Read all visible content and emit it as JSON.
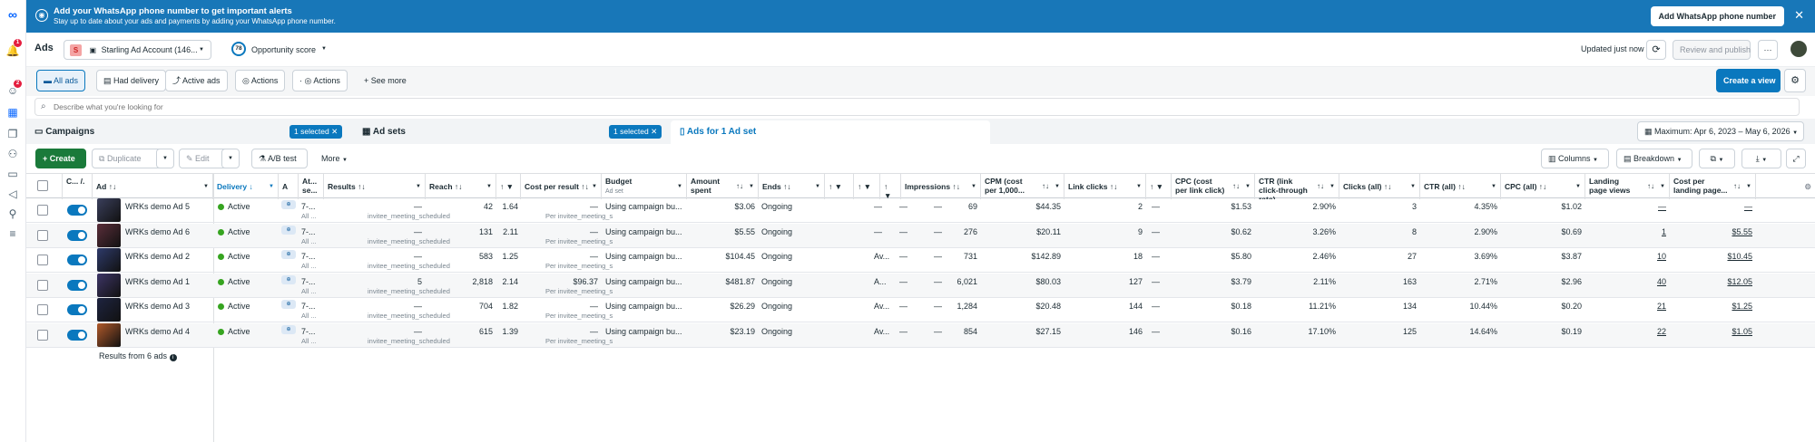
{
  "notifications_badge": "1",
  "messages_badge": "2",
  "banner": {
    "title": "Add your WhatsApp phone number to get important alerts",
    "subtitle": "Stay up to date about your ads and payments by adding your WhatsApp phone number.",
    "button": "Add WhatsApp phone number"
  },
  "topbar": {
    "title": "Ads",
    "account_initial": "S",
    "account_name": "Starling Ad Account (146...",
    "score": "78",
    "score_label": "Opportunity score",
    "updated": "Updated just now",
    "review": "Review and publish",
    "more": "···"
  },
  "views": {
    "items": [
      "All ads",
      "Had delivery",
      "Active ads",
      "Actions",
      "Actions"
    ],
    "see_more": "See more",
    "create_view": "Create a view"
  },
  "search": {
    "placeholder": "Describe what you're looking for"
  },
  "panels": {
    "campaigns": "Campaigns",
    "campaigns_selected": "1 selected",
    "adsets": "Ad sets",
    "adsets_selected": "1 selected",
    "ads": "Ads for 1 Ad set",
    "date_range": "Maximum: Apr 6, 2023 – May 6, 2026"
  },
  "actions": {
    "create": "Create",
    "duplicate": "Duplicate",
    "edit": "Edit",
    "abtest": "A/B test",
    "more": "More",
    "columns": "Columns",
    "breakdown": "Breakdown"
  },
  "columns": {
    "onoff": "C... /.",
    "ad": "Ad",
    "delivery": "Delivery",
    "a": "A",
    "attribution": "At... se...",
    "results": "Results",
    "reach": "Reach",
    "frequency": "",
    "cost_per_result": "Cost per result",
    "budget": "Budget",
    "budget_sub": "Ad set",
    "amount_spent": "Amount spent",
    "ends": "Ends",
    "impressions": "Impressions",
    "cpm": "CPM (cost per 1,000...",
    "link_clicks": "Link clicks",
    "cpc": "CPC (cost per link click)",
    "ctr_link": "CTR (link click-through rate)",
    "clicks_all": "Clicks (all)",
    "ctr_all": "CTR (all)",
    "cpc_all": "CPC (all)",
    "lpv": "Landing page views",
    "cost_lpv": "Cost per landing page..."
  },
  "rows": [
    {
      "name": "WRKs demo Ad 5",
      "delivery": "Active",
      "attr": "7-...",
      "attr_sub": "All ...",
      "results": "—",
      "results_sub": "invitee_meeting_scheduled",
      "reach": "42",
      "freq": "1.64",
      "cpr": "—",
      "cpr_sub": "Per invitee_meeting_sc...",
      "budget": "Using campaign bu...",
      "spent": "$3.06",
      "ends": "Ongoing",
      "e1": "—",
      "e2": "—",
      "e3": "—",
      "impr": "69",
      "cpm": "$44.35",
      "clicks": "2",
      "lc2": "—",
      "cpc": "$1.53",
      "ctrl": "2.90%",
      "call": "3",
      "ctra": "4.35%",
      "cpca": "$1.02",
      "lpv": "—",
      "clpv": "—",
      "thumb": "#3a3f5c"
    },
    {
      "name": "WRKs demo Ad 6",
      "delivery": "Active",
      "attr": "7-...",
      "attr_sub": "All ...",
      "results": "—",
      "results_sub": "invitee_meeting_scheduled",
      "reach": "131",
      "freq": "2.11",
      "cpr": "—",
      "cpr_sub": "Per invitee_meeting_sc...",
      "budget": "Using campaign bu...",
      "spent": "$5.55",
      "ends": "Ongoing",
      "e1": "—",
      "e2": "—",
      "e3": "—",
      "impr": "276",
      "cpm": "$20.11",
      "clicks": "9",
      "lc2": "—",
      "cpc": "$0.62",
      "ctrl": "3.26%",
      "call": "8",
      "ctra": "2.90%",
      "cpca": "$0.69",
      "lpv": "1",
      "clpv": "$5.55",
      "thumb": "#5a2e3a"
    },
    {
      "name": "WRKs demo Ad 2",
      "delivery": "Active",
      "attr": "7-...",
      "attr_sub": "All ...",
      "results": "—",
      "results_sub": "invitee_meeting_scheduled",
      "reach": "583",
      "freq": "1.25",
      "cpr": "—",
      "cpr_sub": "Per invitee_meeting_sc...",
      "budget": "Using campaign bu...",
      "spent": "$104.45",
      "ends": "Ongoing",
      "e1": "Av...",
      "e2": "—",
      "e3": "—",
      "impr": "731",
      "cpm": "$142.89",
      "clicks": "18",
      "lc2": "—",
      "cpc": "$5.80",
      "ctrl": "2.46%",
      "call": "27",
      "ctra": "3.69%",
      "cpca": "$3.87",
      "lpv": "10",
      "clpv": "$10.45",
      "thumb": "#2e3a6a"
    },
    {
      "name": "WRKs demo Ad 1",
      "delivery": "Active",
      "attr": "7-...",
      "attr_sub": "All ...",
      "results": "5",
      "results_sub": "invitee_meeting_scheduled",
      "reach": "2,818",
      "freq": "2.14",
      "cpr": "$96.37",
      "cpr_sub": "Per invitee_meeting_sc...",
      "budget": "Using campaign bu...",
      "spent": "$481.87",
      "ends": "Ongoing",
      "e1": "A...",
      "e2": "—",
      "e3": "—",
      "impr": "6,021",
      "cpm": "$80.03",
      "clicks": "127",
      "lc2": "—",
      "cpc": "$3.79",
      "ctrl": "2.11%",
      "call": "163",
      "ctra": "2.71%",
      "cpca": "$2.96",
      "lpv": "40",
      "clpv": "$12.05",
      "thumb": "#3d3566"
    },
    {
      "name": "WRKs demo Ad 3",
      "delivery": "Active",
      "attr": "7-...",
      "attr_sub": "All ...",
      "results": "—",
      "results_sub": "invitee_meeting_scheduled",
      "reach": "704",
      "freq": "1.82",
      "cpr": "—",
      "cpr_sub": "Per invitee_meeting_sc...",
      "budget": "Using campaign bu...",
      "spent": "$26.29",
      "ends": "Ongoing",
      "e1": "Av...",
      "e2": "—",
      "e3": "—",
      "impr": "1,284",
      "cpm": "$20.48",
      "clicks": "144",
      "lc2": "—",
      "cpc": "$0.18",
      "ctrl": "11.21%",
      "call": "134",
      "ctra": "10.44%",
      "cpca": "$0.20",
      "lpv": "21",
      "clpv": "$1.25",
      "thumb": "#1e2440"
    },
    {
      "name": "WRKs demo Ad 4",
      "delivery": "Active",
      "attr": "7-...",
      "attr_sub": "All ...",
      "results": "—",
      "results_sub": "invitee_meeting_scheduled",
      "reach": "615",
      "freq": "1.39",
      "cpr": "—",
      "cpr_sub": "Per invitee_meeting_sc...",
      "budget": "Using campaign bu...",
      "spent": "$23.19",
      "ends": "Ongoing",
      "e1": "Av...",
      "e2": "—",
      "e3": "—",
      "impr": "854",
      "cpm": "$27.15",
      "clicks": "146",
      "lc2": "—",
      "cpc": "$0.16",
      "ctrl": "17.10%",
      "call": "125",
      "ctra": "14.64%",
      "cpca": "$0.19",
      "lpv": "22",
      "clpv": "$1.05",
      "thumb": "#b0592a"
    }
  ],
  "footer": "Results from 6 ads"
}
